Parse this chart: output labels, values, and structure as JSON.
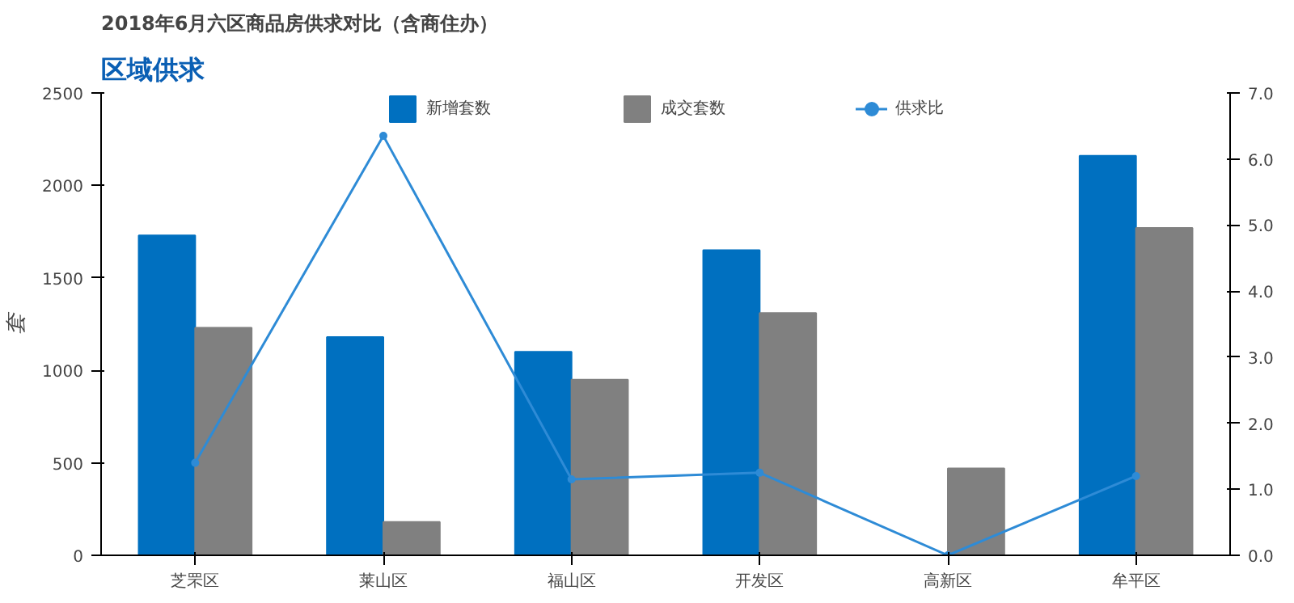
{
  "chart_data": {
    "type": "bar",
    "title": "2018年6月六区商品房供求对比（含商住办）",
    "ylabel": "套",
    "annotations": [
      "区域供求"
    ],
    "categories": [
      "芝罘区",
      "莱山区",
      "福山区",
      "开发区",
      "高新区",
      "牟平区"
    ],
    "series": [
      {
        "name": "新增套数",
        "color": "#0070c0",
        "values": [
          1730,
          1180,
          1100,
          1650,
          0,
          2160
        ]
      },
      {
        "name": "成交套数",
        "color": "#808080",
        "values": [
          1230,
          180,
          950,
          1310,
          470,
          1770
        ]
      },
      {
        "name": "供求比",
        "type": "line",
        "axis": "y2",
        "color": "#2e8bd6",
        "values": [
          1.4,
          6.35,
          1.15,
          1.25,
          0,
          1.2
        ]
      }
    ],
    "ylim": [
      0,
      2500
    ],
    "yticks": [
      0,
      500,
      1000,
      1500,
      2000,
      2500
    ],
    "y2lim": [
      0,
      7
    ],
    "y2ticks": [
      {
        "value": 0,
        "label": "0.0"
      },
      {
        "value": 1,
        "label": "1.0"
      },
      {
        "value": 2,
        "label": "2.0"
      },
      {
        "value": 3,
        "label": "3.0"
      },
      {
        "value": 4,
        "label": "4.0"
      },
      {
        "value": 5,
        "label": "5.0"
      },
      {
        "value": 6,
        "label": "6.0"
      },
      {
        "value": 7,
        "label": "7.0"
      }
    ],
    "grid": false,
    "legend": "top",
    "marker": "circle",
    "line_style": "solid"
  }
}
